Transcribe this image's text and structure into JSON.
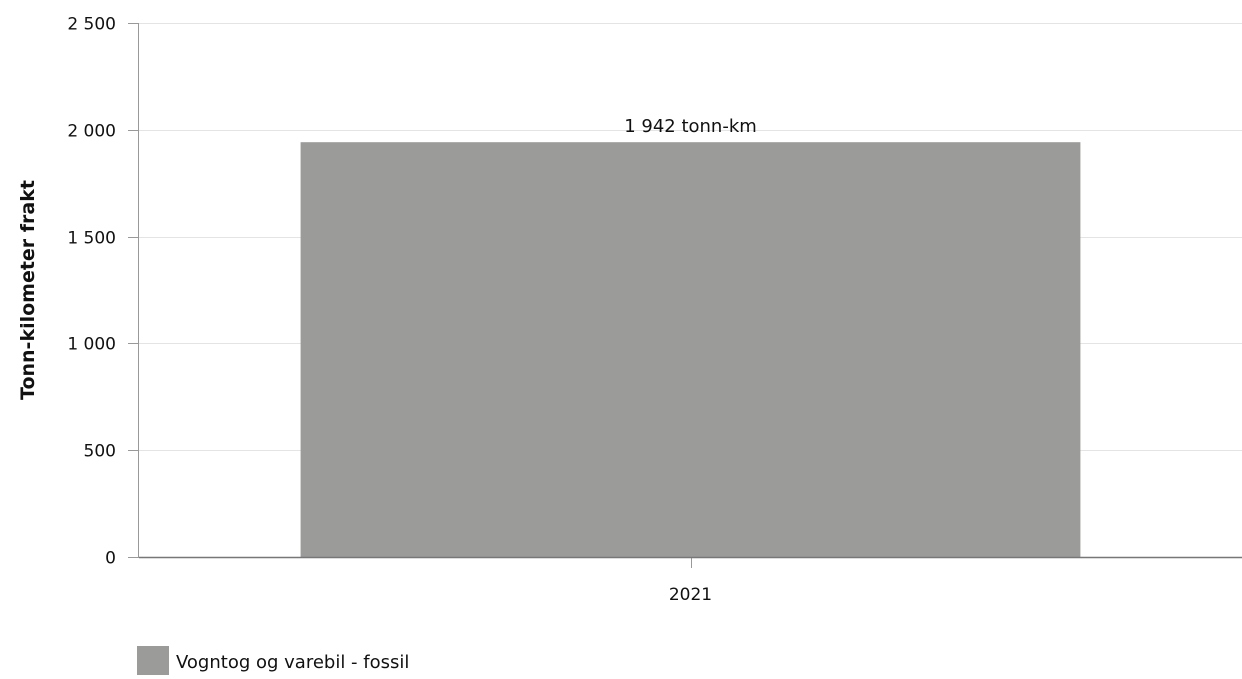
{
  "chart_data": {
    "type": "bar",
    "categories": [
      "2021"
    ],
    "series": [
      {
        "name": "Vogntog og varebil - fossil",
        "values": [
          1942
        ],
        "color": "#9b9b9a",
        "data_labels": [
          "1 942 tonn-km"
        ]
      }
    ],
    "xlabel": "",
    "ylabel": "Tonn-kilometer frakt",
    "ylim": [
      0,
      2500
    ],
    "yticks": [
      0,
      500,
      1000,
      1500,
      2000,
      2500
    ],
    "ytick_labels": [
      "0",
      "500",
      "1 000",
      "1 500",
      "2 000",
      "2 500"
    ],
    "grid": true,
    "legend_position": "bottom-left"
  }
}
